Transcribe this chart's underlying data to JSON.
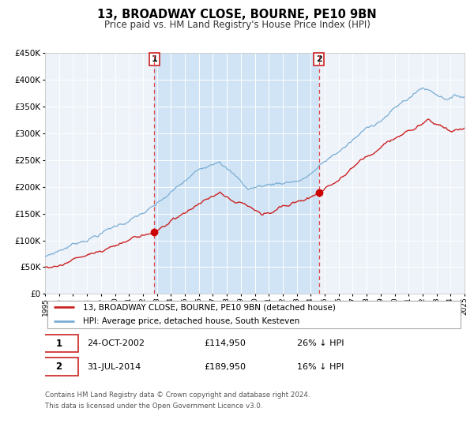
{
  "title": "13, BROADWAY CLOSE, BOURNE, PE10 9BN",
  "subtitle": "Price paid vs. HM Land Registry's House Price Index (HPI)",
  "legend_entry1": "13, BROADWAY CLOSE, BOURNE, PE10 9BN (detached house)",
  "legend_entry2": "HPI: Average price, detached house, South Kesteven",
  "sale1_date": "24-OCT-2002",
  "sale1_price": 114950,
  "sale1_pct": "26%",
  "sale1_label": "1",
  "sale1_year": 2002.81,
  "sale2_date": "31-JUL-2014",
  "sale2_price": 189950,
  "sale2_pct": "16%",
  "sale2_label": "2",
  "sale2_year": 2014.58,
  "footer1": "Contains HM Land Registry data © Crown copyright and database right 2024.",
  "footer2": "This data is licensed under the Open Government Licence v3.0.",
  "hpi_color": "#7aadd4",
  "price_color": "#cc2222",
  "marker_color": "#cc0000",
  "vline_color": "#dd4444",
  "background_color": "#ffffff",
  "plot_bg_color": "#dce8f5",
  "plot_bg_outer": "#eef3fa",
  "grid_color": "#ffffff",
  "shade_color": "#d0e4f5",
  "ylim_max": 450000,
  "xlim_min": 1995,
  "xlim_max": 2025
}
